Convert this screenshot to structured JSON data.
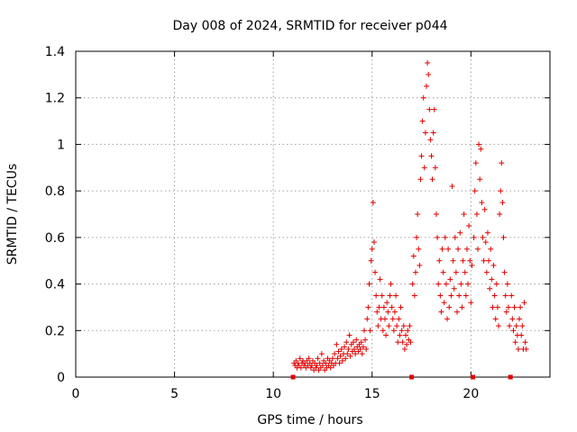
{
  "chart_data": {
    "type": "scatter",
    "title": "Day 008 of 2024, SRMTID for receiver p044",
    "xlabel": "GPS time / hours",
    "ylabel": "SRMTID / TECUs",
    "xlim": [
      0,
      24
    ],
    "ylim": [
      0,
      1.4
    ],
    "xticks": [
      "0",
      "5",
      "10",
      "15",
      "20"
    ],
    "xtick_values": [
      0,
      5,
      10,
      15,
      20
    ],
    "yticks": [
      "0",
      "0.2",
      "0.4",
      "0.6",
      "0.8",
      "1",
      "1.2",
      "1.4"
    ],
    "ytick_values": [
      0,
      0.2,
      0.4,
      0.6,
      0.8,
      1.0,
      1.2,
      1.4
    ],
    "grid": true,
    "marker": "+",
    "color": "#e00000",
    "series": [
      {
        "name": "SRMTID",
        "points": [
          [
            11.0,
            0.0
          ],
          [
            11.05,
            0.06
          ],
          [
            11.1,
            0.05
          ],
          [
            11.15,
            0.07
          ],
          [
            11.2,
            0.04
          ],
          [
            11.25,
            0.06
          ],
          [
            11.3,
            0.05
          ],
          [
            11.35,
            0.08
          ],
          [
            11.4,
            0.04
          ],
          [
            11.45,
            0.06
          ],
          [
            11.5,
            0.07
          ],
          [
            11.55,
            0.05
          ],
          [
            11.6,
            0.06
          ],
          [
            11.65,
            0.04
          ],
          [
            11.7,
            0.07
          ],
          [
            11.75,
            0.05
          ],
          [
            11.8,
            0.08
          ],
          [
            11.85,
            0.06
          ],
          [
            11.9,
            0.04
          ],
          [
            11.95,
            0.05
          ],
          [
            12.0,
            0.07
          ],
          [
            12.05,
            0.03
          ],
          [
            12.1,
            0.06
          ],
          [
            12.15,
            0.04
          ],
          [
            12.2,
            0.05
          ],
          [
            12.25,
            0.08
          ],
          [
            12.3,
            0.03
          ],
          [
            12.35,
            0.06
          ],
          [
            12.4,
            0.04
          ],
          [
            12.45,
            0.1
          ],
          [
            12.5,
            0.05
          ],
          [
            12.55,
            0.07
          ],
          [
            12.6,
            0.03
          ],
          [
            12.65,
            0.06
          ],
          [
            12.7,
            0.04
          ],
          [
            12.75,
            0.08
          ],
          [
            12.8,
            0.05
          ],
          [
            12.85,
            0.07
          ],
          [
            12.9,
            0.04
          ],
          [
            12.95,
            0.06
          ],
          [
            13.0,
            0.08
          ],
          [
            13.05,
            0.05
          ],
          [
            13.1,
            0.1
          ],
          [
            13.15,
            0.06
          ],
          [
            13.2,
            0.14
          ],
          [
            13.25,
            0.08
          ],
          [
            13.3,
            0.11
          ],
          [
            13.35,
            0.06
          ],
          [
            13.4,
            0.09
          ],
          [
            13.45,
            0.12
          ],
          [
            13.5,
            0.07
          ],
          [
            13.55,
            0.1
          ],
          [
            13.6,
            0.13
          ],
          [
            13.65,
            0.08
          ],
          [
            13.7,
            0.15
          ],
          [
            13.75,
            0.1
          ],
          [
            13.8,
            0.12
          ],
          [
            13.85,
            0.18
          ],
          [
            13.9,
            0.09
          ],
          [
            13.95,
            0.14
          ],
          [
            14.0,
            0.11
          ],
          [
            14.05,
            0.15
          ],
          [
            14.1,
            0.12
          ],
          [
            14.15,
            0.1
          ],
          [
            14.2,
            0.16
          ],
          [
            14.25,
            0.13
          ],
          [
            14.3,
            0.11
          ],
          [
            14.35,
            0.14
          ],
          [
            14.4,
            0.12
          ],
          [
            14.45,
            0.15
          ],
          [
            14.5,
            0.1
          ],
          [
            14.55,
            0.13
          ],
          [
            14.6,
            0.2
          ],
          [
            14.65,
            0.16
          ],
          [
            14.7,
            0.12
          ],
          [
            14.75,
            0.25
          ],
          [
            14.8,
            0.3
          ],
          [
            14.85,
            0.4
          ],
          [
            14.9,
            0.2
          ],
          [
            14.95,
            0.5
          ],
          [
            15.0,
            0.55
          ],
          [
            15.05,
            0.75
          ],
          [
            15.1,
            0.58
          ],
          [
            15.15,
            0.45
          ],
          [
            15.2,
            0.35
          ],
          [
            15.25,
            0.28
          ],
          [
            15.3,
            0.22
          ],
          [
            15.35,
            0.3
          ],
          [
            15.4,
            0.42
          ],
          [
            15.45,
            0.25
          ],
          [
            15.5,
            0.35
          ],
          [
            15.55,
            0.2
          ],
          [
            15.6,
            0.3
          ],
          [
            15.65,
            0.25
          ],
          [
            15.7,
            0.18
          ],
          [
            15.75,
            0.32
          ],
          [
            15.8,
            0.28
          ],
          [
            15.85,
            0.22
          ],
          [
            15.9,
            0.35
          ],
          [
            15.95,
            0.4
          ],
          [
            16.0,
            0.3
          ],
          [
            16.05,
            0.25
          ],
          [
            16.1,
            0.2
          ],
          [
            16.15,
            0.28
          ],
          [
            16.2,
            0.35
          ],
          [
            16.25,
            0.22
          ],
          [
            16.3,
            0.15
          ],
          [
            16.35,
            0.25
          ],
          [
            16.4,
            0.18
          ],
          [
            16.45,
            0.3
          ],
          [
            16.5,
            0.2
          ],
          [
            16.55,
            0.15
          ],
          [
            16.6,
            0.22
          ],
          [
            16.65,
            0.12
          ],
          [
            16.7,
            0.18
          ],
          [
            16.75,
            0.14
          ],
          [
            16.8,
            0.2
          ],
          [
            16.85,
            0.16
          ],
          [
            16.9,
            0.22
          ],
          [
            16.95,
            0.15
          ],
          [
            17.0,
            0.0
          ],
          [
            17.05,
            0.4
          ],
          [
            17.1,
            0.52
          ],
          [
            17.15,
            0.35
          ],
          [
            17.2,
            0.45
          ],
          [
            17.25,
            0.6
          ],
          [
            17.3,
            0.7
          ],
          [
            17.35,
            0.55
          ],
          [
            17.4,
            0.48
          ],
          [
            17.45,
            0.85
          ],
          [
            17.5,
            0.95
          ],
          [
            17.55,
            1.1
          ],
          [
            17.6,
            1.2
          ],
          [
            17.65,
            0.9
          ],
          [
            17.7,
            1.05
          ],
          [
            17.75,
            1.25
          ],
          [
            17.8,
            1.35
          ],
          [
            17.85,
            1.3
          ],
          [
            17.9,
            1.15
          ],
          [
            17.95,
            1.02
          ],
          [
            18.0,
            0.95
          ],
          [
            18.05,
            0.85
          ],
          [
            18.1,
            1.05
          ],
          [
            18.15,
            1.15
          ],
          [
            18.2,
            0.9
          ],
          [
            18.25,
            0.7
          ],
          [
            18.3,
            0.6
          ],
          [
            18.35,
            0.4
          ],
          [
            18.4,
            0.5
          ],
          [
            18.45,
            0.35
          ],
          [
            18.5,
            0.28
          ],
          [
            18.55,
            0.55
          ],
          [
            18.6,
            0.45
          ],
          [
            18.65,
            0.32
          ],
          [
            18.7,
            0.6
          ],
          [
            18.75,
            0.4
          ],
          [
            18.8,
            0.25
          ],
          [
            18.85,
            0.55
          ],
          [
            18.9,
            0.3
          ],
          [
            18.95,
            0.42
          ],
          [
            19.0,
            0.35
          ],
          [
            19.05,
            0.82
          ],
          [
            19.1,
            0.5
          ],
          [
            19.15,
            0.38
          ],
          [
            19.2,
            0.6
          ],
          [
            19.25,
            0.45
          ],
          [
            19.3,
            0.28
          ],
          [
            19.35,
            0.55
          ],
          [
            19.4,
            0.35
          ],
          [
            19.45,
            0.62
          ],
          [
            19.5,
            0.4
          ],
          [
            19.55,
            0.3
          ],
          [
            19.6,
            0.5
          ],
          [
            19.65,
            0.7
          ],
          [
            19.7,
            0.45
          ],
          [
            19.75,
            0.35
          ],
          [
            19.8,
            0.55
          ],
          [
            19.85,
            0.4
          ],
          [
            19.9,
            0.65
          ],
          [
            19.95,
            0.5
          ],
          [
            20.0,
            0.32
          ],
          [
            20.05,
            0.48
          ],
          [
            20.1,
            0.0
          ],
          [
            20.15,
            0.6
          ],
          [
            20.2,
            0.8
          ],
          [
            20.25,
            0.92
          ],
          [
            20.3,
            0.7
          ],
          [
            20.35,
            0.55
          ],
          [
            20.4,
            1.0
          ],
          [
            20.45,
            0.85
          ],
          [
            20.5,
            0.98
          ],
          [
            20.55,
            0.75
          ],
          [
            20.6,
            0.6
          ],
          [
            20.65,
            0.5
          ],
          [
            20.7,
            0.72
          ],
          [
            20.75,
            0.58
          ],
          [
            20.8,
            0.45
          ],
          [
            20.85,
            0.62
          ],
          [
            20.9,
            0.5
          ],
          [
            20.95,
            0.38
          ],
          [
            21.0,
            0.55
          ],
          [
            21.05,
            0.42
          ],
          [
            21.1,
            0.3
          ],
          [
            21.15,
            0.48
          ],
          [
            21.2,
            0.35
          ],
          [
            21.25,
            0.25
          ],
          [
            21.3,
            0.4
          ],
          [
            21.35,
            0.3
          ],
          [
            21.4,
            0.22
          ],
          [
            21.45,
            0.7
          ],
          [
            21.5,
            0.8
          ],
          [
            21.55,
            0.92
          ],
          [
            21.6,
            0.75
          ],
          [
            21.65,
            0.6
          ],
          [
            21.7,
            0.45
          ],
          [
            21.75,
            0.35
          ],
          [
            21.8,
            0.28
          ],
          [
            21.85,
            0.4
          ],
          [
            21.9,
            0.3
          ],
          [
            21.95,
            0.22
          ],
          [
            22.0,
            0.0
          ],
          [
            22.05,
            0.35
          ],
          [
            22.1,
            0.25
          ],
          [
            22.15,
            0.2
          ],
          [
            22.2,
            0.3
          ],
          [
            22.25,
            0.15
          ],
          [
            22.3,
            0.22
          ],
          [
            22.35,
            0.18
          ],
          [
            22.4,
            0.12
          ],
          [
            22.45,
            0.25
          ],
          [
            22.5,
            0.3
          ],
          [
            22.55,
            0.18
          ],
          [
            22.6,
            0.22
          ],
          [
            22.65,
            0.12
          ],
          [
            22.7,
            0.32
          ],
          [
            22.75,
            0.15
          ],
          [
            22.8,
            0.12
          ]
        ]
      }
    ]
  }
}
